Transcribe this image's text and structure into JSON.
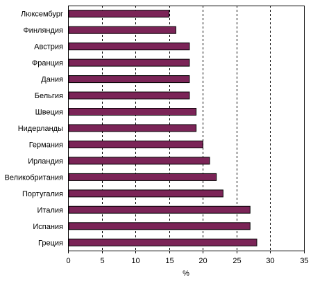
{
  "chart_data": {
    "type": "bar",
    "orientation": "horizontal",
    "categories": [
      "Люксембург",
      "Финляндия",
      "Австрия",
      "Франция",
      "Дания",
      "Бельгия",
      "Швеция",
      "Нидерланды",
      "Германия",
      "Ирландия",
      "Великобритания",
      "Португалия",
      "Италия",
      "Испания",
      "Греция"
    ],
    "values": [
      15,
      16,
      18,
      18,
      18,
      18,
      19,
      19,
      20,
      21,
      22,
      23,
      27,
      27,
      28
    ],
    "title": "",
    "xlabel": "%",
    "ylabel": "",
    "xlim": [
      0,
      35
    ],
    "xticks": [
      0,
      5,
      10,
      15,
      20,
      25,
      30,
      35
    ],
    "grid": "vertical dashed",
    "bar_color": "#7b2457",
    "legend": "none"
  }
}
